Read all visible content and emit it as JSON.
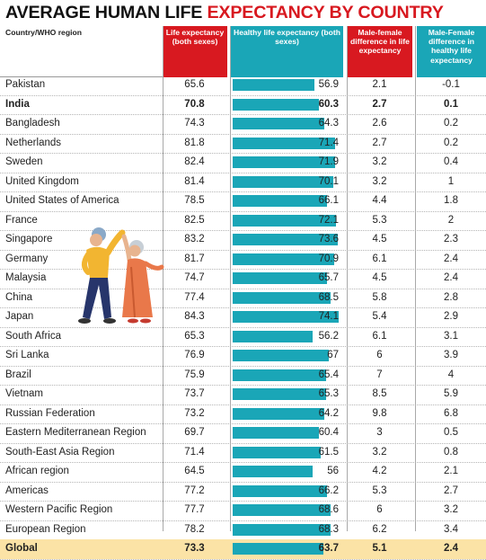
{
  "title": {
    "part1": "AVERAGE HUMAN LIFE ",
    "part2": "EXPECTANCY BY COUNTRY"
  },
  "headers": {
    "region": "Country/WHO region",
    "life": "Life expectancy (both sexes)",
    "healthy": "Healthy life expectancy (both sexes)",
    "mf_life": "Male-female difference in life expectancy",
    "mf_healthy": "Male-Female difference in healthy life expectancy"
  },
  "colors": {
    "red": "#d81920",
    "teal": "#1aa6b7",
    "global_row": "#fbe3a6"
  },
  "illustration": "elderly-couple-dancing",
  "chart_data": {
    "type": "table",
    "bar_column": "healthy_life_expectancy",
    "bar_range": [
      0,
      74.1
    ],
    "columns": [
      "Country/WHO region",
      "Life expectancy (both sexes)",
      "Healthy life expectancy (both sexes)",
      "Male-female difference in life expectancy",
      "Male-Female difference in healthy life expectancy"
    ],
    "rows": [
      {
        "name": "Pakistan",
        "life": "65.6",
        "healthy": "56.9",
        "mf": "2.1",
        "mfh": "-0.1",
        "bold": false
      },
      {
        "name": "India",
        "life": "70.8",
        "healthy": "60.3",
        "mf": "2.7",
        "mfh": "0.1",
        "bold": true
      },
      {
        "name": "Bangladesh",
        "life": "74.3",
        "healthy": "64.3",
        "mf": "2.6",
        "mfh": "0.2",
        "bold": false
      },
      {
        "name": "Netherlands",
        "life": "81.8",
        "healthy": "71.4",
        "mf": "2.7",
        "mfh": "0.2",
        "bold": false
      },
      {
        "name": "Sweden",
        "life": "82.4",
        "healthy": "71.9",
        "mf": "3.2",
        "mfh": "0.4",
        "bold": false
      },
      {
        "name": "United Kingdom",
        "life": "81.4",
        "healthy": "70.1",
        "mf": "3.2",
        "mfh": "1",
        "bold": false
      },
      {
        "name": "United States of America",
        "life": "78.5",
        "healthy": "66.1",
        "mf": "4.4",
        "mfh": "1.8",
        "bold": false
      },
      {
        "name": "France",
        "life": "82.5",
        "healthy": "72.1",
        "mf": "5.3",
        "mfh": "2",
        "bold": false
      },
      {
        "name": "Singapore",
        "life": "83.2",
        "healthy": "73.6",
        "mf": "4.5",
        "mfh": "2.3",
        "bold": false
      },
      {
        "name": "Germany",
        "life": "81.7",
        "healthy": "70.9",
        "mf": "6.1",
        "mfh": "2.4",
        "bold": false
      },
      {
        "name": "Malaysia",
        "life": "74.7",
        "healthy": "65.7",
        "mf": "4.5",
        "mfh": "2.4",
        "bold": false
      },
      {
        "name": "China",
        "life": "77.4",
        "healthy": "68.5",
        "mf": "5.8",
        "mfh": "2.8",
        "bold": false
      },
      {
        "name": "Japan",
        "life": "84.3",
        "healthy": "74.1",
        "mf": "5.4",
        "mfh": "2.9",
        "bold": false
      },
      {
        "name": "South Africa",
        "life": "65.3",
        "healthy": "56.2",
        "mf": "6.1",
        "mfh": "3.1",
        "bold": false
      },
      {
        "name": "Sri Lanka",
        "life": "76.9",
        "healthy": "67",
        "mf": "6",
        "mfh": "3.9",
        "bold": false
      },
      {
        "name": "Brazil",
        "life": "75.9",
        "healthy": "65.4",
        "mf": "7",
        "mfh": "4",
        "bold": false
      },
      {
        "name": "Vietnam",
        "life": "73.7",
        "healthy": "65.3",
        "mf": "8.5",
        "mfh": "5.9",
        "bold": false
      },
      {
        "name": "Russian Federation",
        "life": "73.2",
        "healthy": "64.2",
        "mf": "9.8",
        "mfh": "6.8",
        "bold": false
      },
      {
        "name": "Eastern Mediterranean Region",
        "life": "69.7",
        "healthy": "60.4",
        "mf": "3",
        "mfh": "0.5",
        "bold": false
      },
      {
        "name": "South-East Asia Region",
        "life": "71.4",
        "healthy": "61.5",
        "mf": "3.2",
        "mfh": "0.8",
        "bold": false
      },
      {
        "name": "African region",
        "life": "64.5",
        "healthy": "56",
        "mf": "4.2",
        "mfh": "2.1",
        "bold": false
      },
      {
        "name": "Americas",
        "life": "77.2",
        "healthy": "66.2",
        "mf": "5.3",
        "mfh": "2.7",
        "bold": false
      },
      {
        "name": "Western Pacific Region",
        "life": "77.7",
        "healthy": "68.6",
        "mf": "6",
        "mfh": "3.2",
        "bold": false
      },
      {
        "name": "European Region",
        "life": "78.2",
        "healthy": "68.3",
        "mf": "6.2",
        "mfh": "3.4",
        "bold": false
      },
      {
        "name": "Global",
        "life": "73.3",
        "healthy": "63.7",
        "mf": "5.1",
        "mfh": "2.4",
        "bold": true,
        "highlight": true
      }
    ]
  }
}
